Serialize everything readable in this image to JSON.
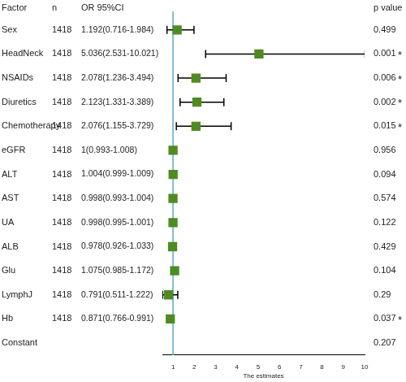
{
  "chart_data": {
    "type": "forest",
    "column_headers": [
      "Factor",
      "n",
      "OR 95%CI",
      "p value"
    ],
    "x_label": "The estimates",
    "categories": [
      "Sex",
      "HeadNeck",
      "NSAIDs",
      "Diuretics",
      "Chemotherapy",
      "eGFR",
      "ALT",
      "AST",
      "UA",
      "ALB",
      "Glu",
      "LymphJ",
      "Hb",
      "Constant"
    ],
    "n": [
      1418,
      1418,
      1418,
      1418,
      1418,
      1418,
      1418,
      1418,
      1418,
      1418,
      1418,
      1418,
      1418,
      null
    ],
    "values": [
      1.192,
      5.036,
      2.078,
      2.123,
      2.076,
      1,
      1.004,
      0.998,
      0.998,
      0.978,
      1.075,
      0.791,
      0.871,
      null
    ],
    "lower": [
      0.716,
      2.531,
      1.236,
      1.331,
      1.155,
      0.993,
      0.999,
      0.993,
      0.995,
      0.926,
      0.985,
      0.511,
      0.766,
      null
    ],
    "upper": [
      1.984,
      10.021,
      3.494,
      3.389,
      3.729,
      1.008,
      1.009,
      1.004,
      1.001,
      1.033,
      1.172,
      1.222,
      0.991,
      null
    ],
    "value_labels": [
      "1.192(0.716-1.984)",
      "5.036(2.531-10.021)",
      "2.078(1.236-3.494)",
      "2.123(1.331-3.389)",
      "2.076(1.155-3.729)",
      "1(0.993-1.008)",
      "1.004(0.999-1.009)",
      "0.998(0.993-1.004)",
      "0.998(0.995-1.001)",
      "0.978(0.926-1.033)",
      "1.075(0.985-1.172)",
      "0.791(0.511-1.222)",
      "0.871(0.766-0.991)",
      null
    ],
    "p_values": [
      0.499,
      0.001,
      0.006,
      0.002,
      0.015,
      0.956,
      0.094,
      0.574,
      0.122,
      0.429,
      0.104,
      0.29,
      0.037,
      0.207
    ],
    "flags": [
      null,
      "*",
      "*",
      "*",
      "*",
      null,
      null,
      null,
      null,
      null,
      null,
      null,
      "*",
      null
    ],
    "reference_line": {
      "value": 1,
      "color": "#7fbcd9"
    },
    "xlim": [
      0.5,
      10
    ],
    "xticks": [
      1,
      2,
      3,
      4,
      5,
      6,
      7,
      8,
      9,
      10
    ],
    "color": "#4f8b22",
    "marker": "square",
    "grid": false
  }
}
